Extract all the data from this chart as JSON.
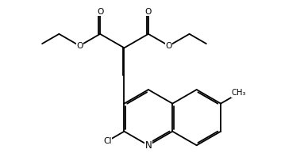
{
  "bg_color": "#ffffff",
  "bond_color": "#000000",
  "text_color": "#000000",
  "lw": 1.3,
  "fs": 8.5,
  "B": 1.0,
  "cl_label": "Cl",
  "n_label": "N",
  "o_label": "O",
  "ch3_label": "CH₃"
}
